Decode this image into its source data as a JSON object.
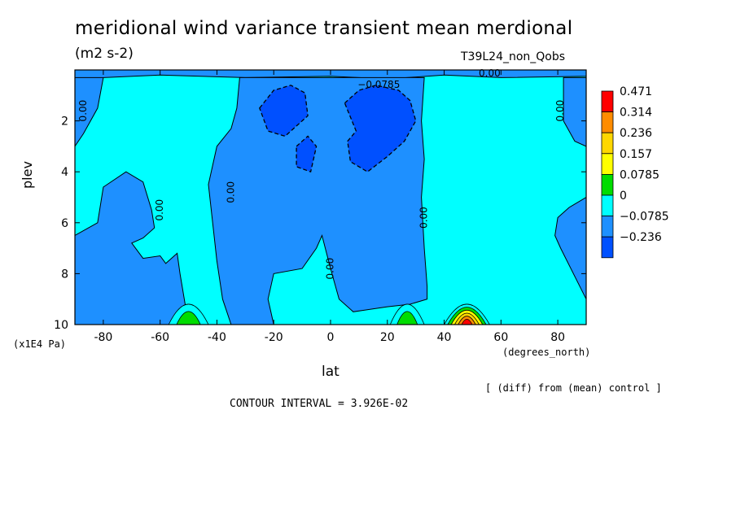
{
  "chart_data": {
    "type": "heatmap",
    "title": "meridional wind variance transient mean merdional",
    "units": "(m2 s-2)",
    "run_label": "T39L24_non_Qobs",
    "xlabel": "lat",
    "x_unit": "(degrees_north)",
    "ylabel": "plev",
    "y_unit": "(x1E4 Pa)",
    "xlim": [
      -90,
      90
    ],
    "ylim": [
      0,
      10
    ],
    "x_ticks": [
      "-80",
      "-60",
      "-40",
      "-20",
      "0",
      "20",
      "40",
      "60",
      "80"
    ],
    "x_tick_values": [
      -80,
      -60,
      -40,
      -20,
      0,
      20,
      40,
      60,
      80
    ],
    "y_ticks": [
      "2",
      "4",
      "6",
      "8",
      "10"
    ],
    "y_tick_values": [
      2,
      4,
      6,
      8,
      10
    ],
    "legend": {
      "placement": "right",
      "levels": [
        "0.471",
        "0.314",
        "0.236",
        "0.157",
        "0.0785",
        "0",
        "−0.0785",
        "−0.236"
      ],
      "colors": [
        "#ff0000",
        "#ff8c00",
        "#ffd700",
        "#ffff00",
        "#00dd00",
        "#00ffff",
        "#1e90ff",
        "#0050ff"
      ]
    },
    "contour_labels": [
      {
        "text": "−0.0785",
        "lat": 17,
        "plev": 0.7
      },
      {
        "text": "0.00",
        "lat": 56,
        "plev": 0.25
      },
      {
        "text": "0.00",
        "lat": -86,
        "plev": 1.6
      },
      {
        "text": "0.00",
        "lat": 82,
        "plev": 1.6
      },
      {
        "text": "0.00",
        "lat": -59,
        "plev": 5.5
      },
      {
        "text": "0.00",
        "lat": -34,
        "plev": 4.8
      },
      {
        "text": "0.00",
        "lat": 34,
        "plev": 5.8
      },
      {
        "text": "0.00",
        "lat": 1,
        "plev": 7.8
      }
    ],
    "regions": {
      "background_level": 0,
      "negative_blobs": [
        {
          "lat_range": [
            -82,
            -62
          ],
          "plev_range": [
            3.5,
            10
          ],
          "level": -0.0785
        },
        {
          "lat_range": [
            -34,
            35
          ],
          "plev_range": [
            0,
            10
          ],
          "level": -0.0785
        },
        {
          "lat_range": [
            -25,
            -5
          ],
          "plev_range": [
            0.7,
            3.0
          ],
          "level": -0.236
        },
        {
          "lat_range": [
            6,
            28
          ],
          "plev_range": [
            0.7,
            4.0
          ],
          "level": -0.236
        },
        {
          "lat_range": [
            80,
            90
          ],
          "plev_range": [
            5.5,
            10
          ],
          "level": -0.0785
        }
      ],
      "positive_blobs": [
        {
          "lat_center": -50,
          "plev_peak": 10,
          "max_level": 0.157
        },
        {
          "lat_center": 27,
          "plev_peak": 10,
          "max_level": 0.157
        },
        {
          "lat_center": 48,
          "plev_peak": 10,
          "max_level": 0.471
        }
      ]
    },
    "contour_interval_text": "CONTOUR INTERVAL = 3.926E-02",
    "footnote": "[ (diff) from (mean) control ]"
  }
}
